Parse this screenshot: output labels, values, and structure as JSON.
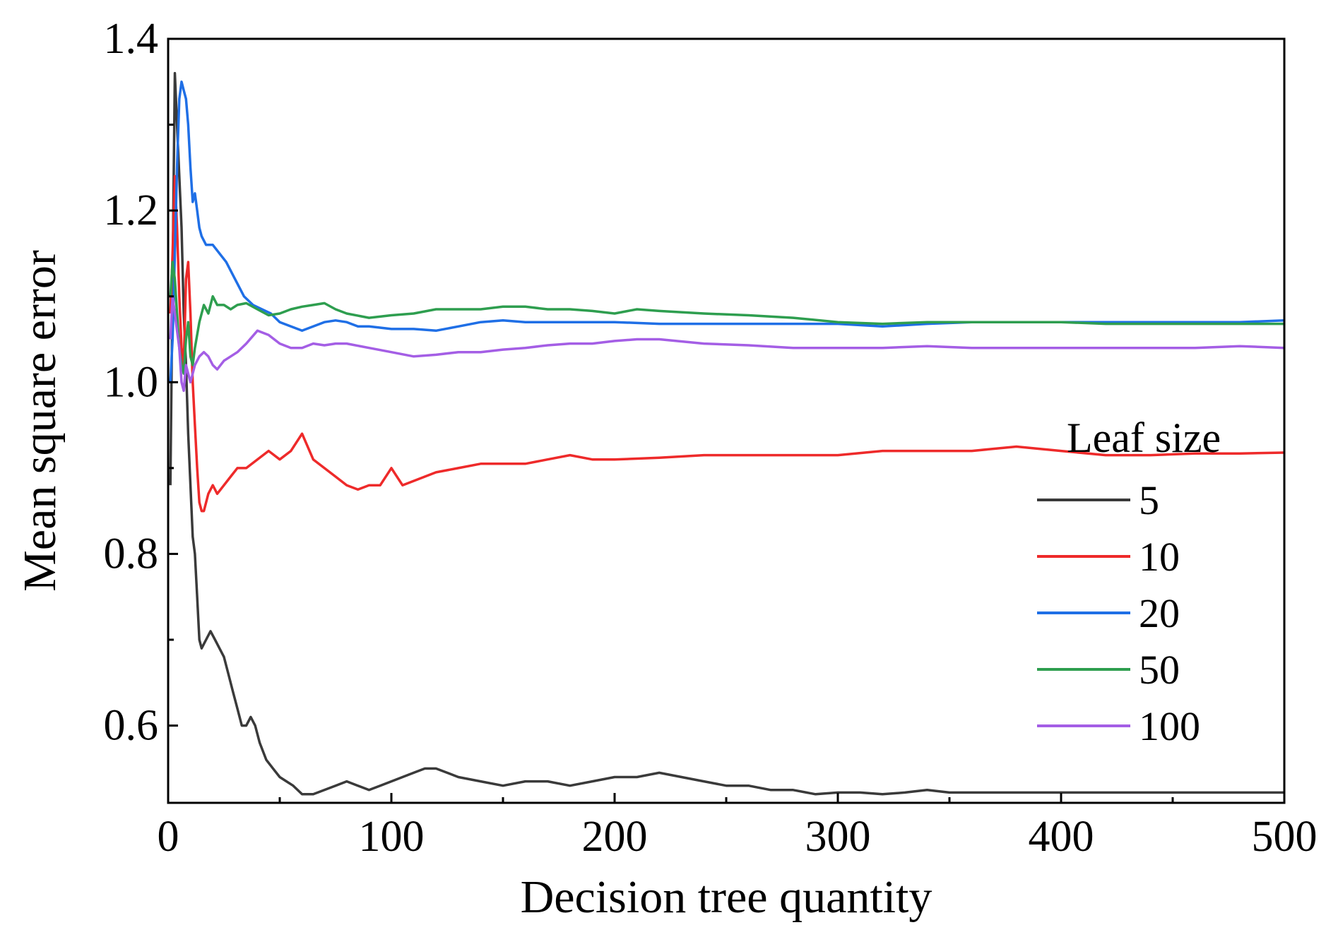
{
  "chart_data": {
    "type": "line",
    "title": "",
    "xlabel": "Decision tree quantity",
    "ylabel": "Mean square error",
    "xlim": [
      0,
      500
    ],
    "ylim": [
      0.51,
      1.4
    ],
    "xticks": [
      0,
      100,
      200,
      300,
      400,
      500
    ],
    "xtick_labels": [
      "0",
      "100",
      "200",
      "300",
      "400",
      "500"
    ],
    "yticks": [
      0.6,
      0.8,
      1.0,
      1.2,
      1.4
    ],
    "ytick_labels": [
      "0.6",
      "0.8",
      "1.0",
      "1.2",
      "1.4"
    ],
    "grid": false,
    "legend": {
      "title": "Leaf size",
      "placement": "right"
    },
    "series": [
      {
        "name": "5",
        "color": "#3a3a3a",
        "x": [
          1,
          2,
          3,
          4,
          5,
          6,
          7,
          8,
          9,
          10,
          11,
          12,
          13,
          14,
          15,
          17,
          19,
          21,
          23,
          25,
          27,
          29,
          31,
          33,
          35,
          37,
          39,
          41,
          44,
          47,
          50,
          53,
          56,
          60,
          65,
          70,
          75,
          80,
          85,
          90,
          95,
          100,
          105,
          110,
          115,
          120,
          125,
          130,
          140,
          150,
          160,
          170,
          180,
          190,
          200,
          210,
          220,
          230,
          240,
          250,
          260,
          270,
          280,
          290,
          300,
          310,
          320,
          330,
          340,
          350,
          360,
          380,
          400,
          420,
          440,
          460,
          480,
          500
        ],
        "values": [
          0.88,
          1.12,
          1.36,
          1.3,
          1.24,
          1.18,
          1.08,
          1.02,
          0.94,
          0.88,
          0.82,
          0.8,
          0.75,
          0.7,
          0.69,
          0.7,
          0.71,
          0.7,
          0.69,
          0.68,
          0.66,
          0.64,
          0.62,
          0.6,
          0.6,
          0.61,
          0.6,
          0.58,
          0.56,
          0.55,
          0.54,
          0.535,
          0.53,
          0.52,
          0.52,
          0.525,
          0.53,
          0.535,
          0.53,
          0.525,
          0.53,
          0.535,
          0.54,
          0.545,
          0.55,
          0.55,
          0.545,
          0.54,
          0.535,
          0.53,
          0.535,
          0.535,
          0.53,
          0.535,
          0.54,
          0.54,
          0.545,
          0.54,
          0.535,
          0.53,
          0.53,
          0.525,
          0.525,
          0.52,
          0.522,
          0.522,
          0.52,
          0.522,
          0.525,
          0.522,
          0.522,
          0.522,
          0.522,
          0.522,
          0.522,
          0.522,
          0.522,
          0.522
        ]
      },
      {
        "name": "10",
        "color": "#ee2a2a",
        "x": [
          1,
          2,
          3,
          4,
          5,
          6,
          7,
          8,
          9,
          10,
          11,
          12,
          13,
          14,
          15,
          16,
          18,
          20,
          22,
          25,
          28,
          31,
          35,
          40,
          45,
          50,
          55,
          60,
          65,
          70,
          75,
          80,
          85,
          90,
          95,
          100,
          105,
          110,
          115,
          120,
          130,
          140,
          150,
          160,
          170,
          180,
          190,
          200,
          220,
          240,
          260,
          280,
          300,
          320,
          340,
          360,
          380,
          400,
          420,
          440,
          460,
          480,
          500
        ],
        "values": [
          1.08,
          1.15,
          1.24,
          1.18,
          1.1,
          1.04,
          1.02,
          1.12,
          1.14,
          1.08,
          1.0,
          0.95,
          0.9,
          0.86,
          0.85,
          0.85,
          0.87,
          0.88,
          0.87,
          0.88,
          0.89,
          0.9,
          0.9,
          0.91,
          0.92,
          0.91,
          0.92,
          0.94,
          0.91,
          0.9,
          0.89,
          0.88,
          0.875,
          0.88,
          0.88,
          0.9,
          0.88,
          0.885,
          0.89,
          0.895,
          0.9,
          0.905,
          0.905,
          0.905,
          0.91,
          0.915,
          0.91,
          0.91,
          0.912,
          0.915,
          0.915,
          0.915,
          0.915,
          0.92,
          0.92,
          0.92,
          0.925,
          0.92,
          0.915,
          0.915,
          0.917,
          0.917,
          0.918
        ]
      },
      {
        "name": "20",
        "color": "#1f6fe6",
        "x": [
          1,
          2,
          3,
          4,
          5,
          6,
          7,
          8,
          9,
          10,
          11,
          12,
          13,
          14,
          15,
          17,
          20,
          23,
          26,
          30,
          34,
          38,
          42,
          46,
          50,
          55,
          60,
          65,
          70,
          75,
          80,
          85,
          90,
          100,
          110,
          120,
          130,
          140,
          150,
          160,
          170,
          180,
          200,
          220,
          240,
          260,
          280,
          300,
          320,
          340,
          360,
          380,
          400,
          420,
          440,
          460,
          480,
          500
        ],
        "values": [
          1.0,
          1.05,
          1.15,
          1.25,
          1.33,
          1.35,
          1.34,
          1.33,
          1.3,
          1.25,
          1.21,
          1.22,
          1.2,
          1.18,
          1.17,
          1.16,
          1.16,
          1.15,
          1.14,
          1.12,
          1.1,
          1.09,
          1.085,
          1.08,
          1.07,
          1.065,
          1.06,
          1.065,
          1.07,
          1.072,
          1.07,
          1.065,
          1.065,
          1.062,
          1.062,
          1.06,
          1.065,
          1.07,
          1.072,
          1.07,
          1.07,
          1.07,
          1.07,
          1.068,
          1.068,
          1.068,
          1.068,
          1.068,
          1.065,
          1.068,
          1.07,
          1.07,
          1.07,
          1.07,
          1.07,
          1.07,
          1.07,
          1.072
        ]
      },
      {
        "name": "50",
        "color": "#2e9e4f",
        "x": [
          1,
          2,
          3,
          4,
          5,
          6,
          7,
          8,
          9,
          10,
          11,
          12,
          14,
          16,
          18,
          20,
          22,
          25,
          28,
          31,
          35,
          40,
          45,
          50,
          55,
          60,
          65,
          70,
          75,
          80,
          90,
          100,
          110,
          120,
          130,
          140,
          150,
          160,
          170,
          180,
          190,
          200,
          210,
          220,
          240,
          260,
          280,
          300,
          320,
          340,
          360,
          380,
          400,
          420,
          440,
          460,
          480,
          500
        ],
        "values": [
          1.1,
          1.14,
          1.12,
          1.08,
          1.04,
          1.02,
          1.01,
          1.05,
          1.07,
          1.03,
          1.02,
          1.04,
          1.07,
          1.09,
          1.08,
          1.1,
          1.09,
          1.09,
          1.085,
          1.09,
          1.092,
          1.085,
          1.078,
          1.08,
          1.085,
          1.088,
          1.09,
          1.092,
          1.085,
          1.08,
          1.075,
          1.078,
          1.08,
          1.085,
          1.085,
          1.085,
          1.088,
          1.088,
          1.085,
          1.085,
          1.083,
          1.08,
          1.085,
          1.083,
          1.08,
          1.078,
          1.075,
          1.07,
          1.068,
          1.07,
          1.07,
          1.07,
          1.07,
          1.068,
          1.068,
          1.068,
          1.068,
          1.068
        ]
      },
      {
        "name": "100",
        "color": "#a45ee5",
        "x": [
          1,
          2,
          3,
          4,
          5,
          6,
          7,
          8,
          9,
          10,
          12,
          14,
          16,
          18,
          20,
          22,
          25,
          28,
          31,
          35,
          40,
          45,
          50,
          55,
          60,
          65,
          70,
          75,
          80,
          90,
          100,
          110,
          120,
          130,
          140,
          150,
          160,
          170,
          180,
          190,
          200,
          210,
          220,
          240,
          260,
          280,
          300,
          320,
          340,
          360,
          380,
          400,
          420,
          440,
          460,
          480,
          500
        ],
        "values": [
          1.05,
          1.1,
          1.08,
          1.06,
          1.04,
          1.0,
          0.99,
          1.02,
          1.01,
          1.0,
          1.02,
          1.03,
          1.035,
          1.03,
          1.02,
          1.015,
          1.025,
          1.03,
          1.035,
          1.045,
          1.06,
          1.055,
          1.045,
          1.04,
          1.04,
          1.045,
          1.043,
          1.045,
          1.045,
          1.04,
          1.035,
          1.03,
          1.032,
          1.035,
          1.035,
          1.038,
          1.04,
          1.043,
          1.045,
          1.045,
          1.048,
          1.05,
          1.05,
          1.045,
          1.043,
          1.04,
          1.04,
          1.04,
          1.042,
          1.04,
          1.04,
          1.04,
          1.04,
          1.04,
          1.04,
          1.042,
          1.04
        ]
      }
    ]
  }
}
